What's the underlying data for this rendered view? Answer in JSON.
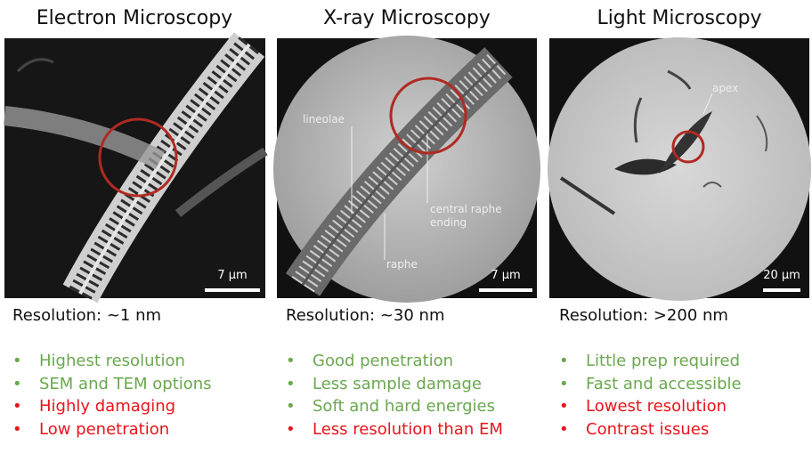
{
  "panels": [
    {
      "title": "Electron Microscopy",
      "scale_bar": "7 μm",
      "resolution": "Resolution: ~1 nm",
      "bullets": [
        {
          "text": "Highest resolution",
          "color": "#6aa84f"
        },
        {
          "text": "SEM and TEM options",
          "color": "#6aa84f"
        },
        {
          "text": "Highly damaging",
          "color": "#e8141b"
        },
        {
          "text": "Low penetration",
          "color": "#e8141b"
        }
      ]
    },
    {
      "title": "X-ray Microscopy",
      "scale_bar": "7 μm",
      "resolution": "Resolution: ~30 nm",
      "annotations": [
        "lineolae",
        "central raphe ending",
        "raphe"
      ],
      "bullets": [
        {
          "text": "Good penetration",
          "color": "#6aa84f"
        },
        {
          "text": "Less sample damage",
          "color": "#6aa84f"
        },
        {
          "text": "Soft and hard energies",
          "color": "#6aa84f"
        },
        {
          "text": "Less resolution than EM",
          "color": "#e8141b"
        }
      ]
    },
    {
      "title": "Light Microscopy",
      "scale_bar": "20 μm",
      "resolution": "Resolution: >200 nm",
      "annotations": [
        "apex"
      ],
      "bullets": [
        {
          "text": "Little prep required",
          "color": "#6aa84f"
        },
        {
          "text": "Fast and accessible",
          "color": "#6aa84f"
        },
        {
          "text": "Lowest resolution",
          "color": "#e8141b"
        },
        {
          "text": "Contrast issues",
          "color": "#e8141b"
        }
      ]
    }
  ]
}
